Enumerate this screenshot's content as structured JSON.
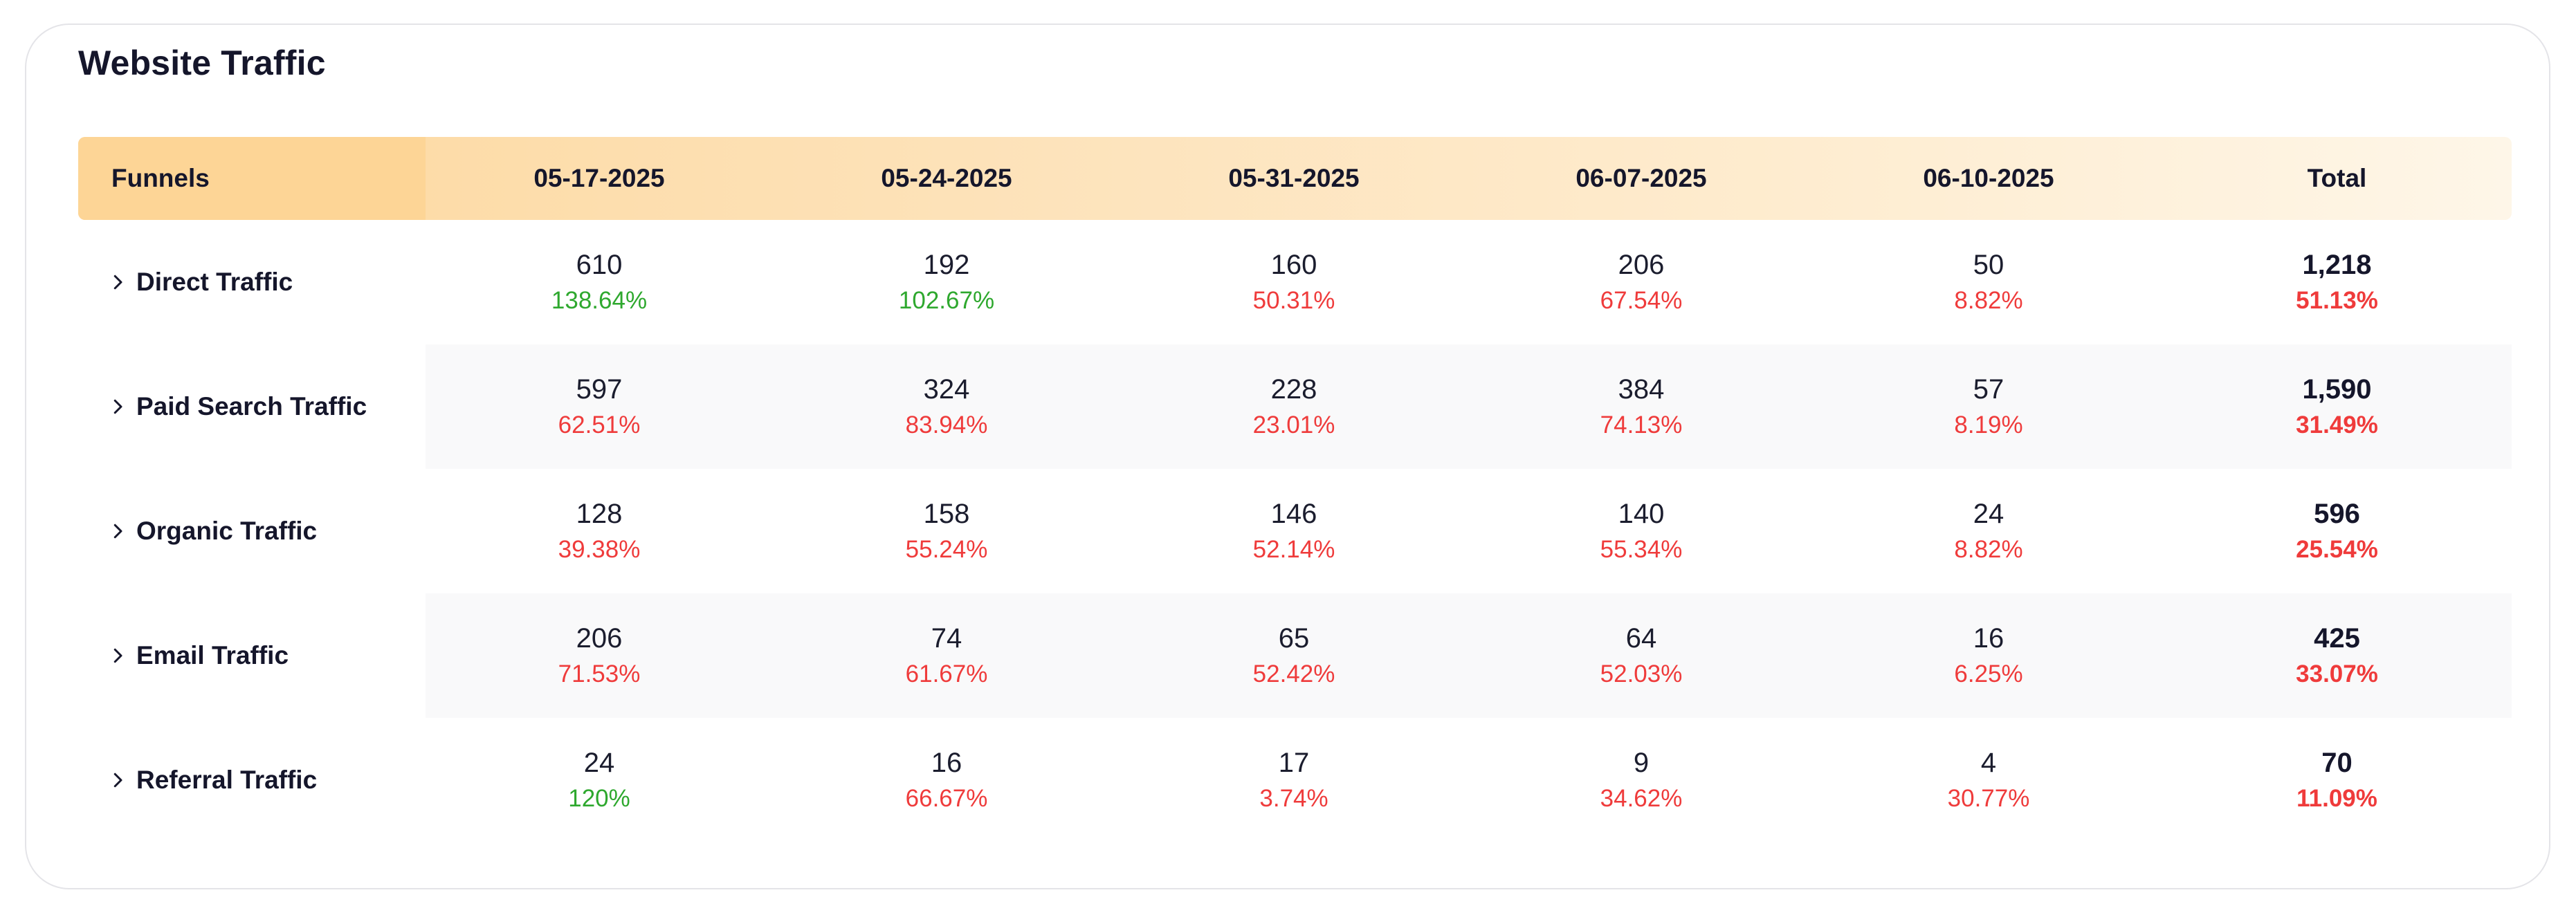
{
  "title": "Website Traffic",
  "headers": {
    "funnel": "Funnels",
    "dates": [
      "05-17-2025",
      "05-24-2025",
      "05-31-2025",
      "06-07-2025",
      "06-10-2025"
    ],
    "total": "Total"
  },
  "colors": {
    "positive": "#2ea82e",
    "negative": "#ef3b3b",
    "header_gradient_start": "#fdd89e",
    "header_gradient_end": "#fef6e8"
  },
  "rows": [
    {
      "label": "Direct Traffic",
      "cells": [
        {
          "value": "610",
          "pct": "138.64%",
          "trend": "green"
        },
        {
          "value": "192",
          "pct": "102.67%",
          "trend": "green"
        },
        {
          "value": "160",
          "pct": "50.31%",
          "trend": "red"
        },
        {
          "value": "206",
          "pct": "67.54%",
          "trend": "red"
        },
        {
          "value": "50",
          "pct": "8.82%",
          "trend": "red"
        }
      ],
      "total": {
        "value": "1,218",
        "pct": "51.13%",
        "trend": "red"
      }
    },
    {
      "label": "Paid Search Traffic",
      "cells": [
        {
          "value": "597",
          "pct": "62.51%",
          "trend": "red"
        },
        {
          "value": "324",
          "pct": "83.94%",
          "trend": "red"
        },
        {
          "value": "228",
          "pct": "23.01%",
          "trend": "red"
        },
        {
          "value": "384",
          "pct": "74.13%",
          "trend": "red"
        },
        {
          "value": "57",
          "pct": "8.19%",
          "trend": "red"
        }
      ],
      "total": {
        "value": "1,590",
        "pct": "31.49%",
        "trend": "red"
      }
    },
    {
      "label": "Organic Traffic",
      "cells": [
        {
          "value": "128",
          "pct": "39.38%",
          "trend": "red"
        },
        {
          "value": "158",
          "pct": "55.24%",
          "trend": "red"
        },
        {
          "value": "146",
          "pct": "52.14%",
          "trend": "red"
        },
        {
          "value": "140",
          "pct": "55.34%",
          "trend": "red"
        },
        {
          "value": "24",
          "pct": "8.82%",
          "trend": "red"
        }
      ],
      "total": {
        "value": "596",
        "pct": "25.54%",
        "trend": "red"
      }
    },
    {
      "label": "Email Traffic",
      "cells": [
        {
          "value": "206",
          "pct": "71.53%",
          "trend": "red"
        },
        {
          "value": "74",
          "pct": "61.67%",
          "trend": "red"
        },
        {
          "value": "65",
          "pct": "52.42%",
          "trend": "red"
        },
        {
          "value": "64",
          "pct": "52.03%",
          "trend": "red"
        },
        {
          "value": "16",
          "pct": "6.25%",
          "trend": "red"
        }
      ],
      "total": {
        "value": "425",
        "pct": "33.07%",
        "trend": "red"
      }
    },
    {
      "label": "Referral Traffic",
      "cells": [
        {
          "value": "24",
          "pct": "120%",
          "trend": "green"
        },
        {
          "value": "16",
          "pct": "66.67%",
          "trend": "red"
        },
        {
          "value": "17",
          "pct": "3.74%",
          "trend": "red"
        },
        {
          "value": "9",
          "pct": "34.62%",
          "trend": "red"
        },
        {
          "value": "4",
          "pct": "30.77%",
          "trend": "red"
        }
      ],
      "total": {
        "value": "70",
        "pct": "11.09%",
        "trend": "red"
      }
    }
  ]
}
